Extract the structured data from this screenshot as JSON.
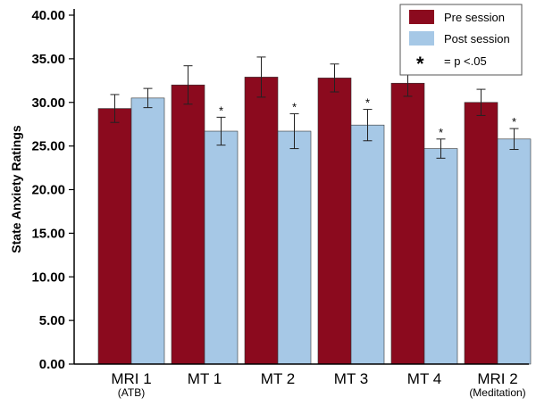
{
  "chart_data": {
    "type": "bar",
    "title": "",
    "xlabel": "",
    "ylabel": "State Anxiety Ratings",
    "ylim": [
      0,
      40
    ],
    "yticks": [
      "0.00",
      "5.00",
      "10.00",
      "15.00",
      "20.00",
      "25.00",
      "30.00",
      "35.00",
      "40.00"
    ],
    "categories": [
      "MRI 1",
      "MT 1",
      "MT 2",
      "MT 3",
      "MT 4",
      "MRI 2"
    ],
    "category_sublabels": [
      "(ATB)",
      "",
      "",
      "",
      "",
      "(Meditation)"
    ],
    "series": [
      {
        "name": "Pre session",
        "color": "#8b0a1e",
        "values": [
          29.3,
          32.0,
          32.9,
          32.8,
          32.2,
          30.0
        ],
        "errors": [
          1.6,
          2.2,
          2.3,
          1.6,
          1.5,
          1.5
        ]
      },
      {
        "name": "Post session",
        "color": "#a6c8e6",
        "values": [
          30.5,
          26.7,
          26.7,
          27.4,
          24.7,
          25.8
        ],
        "errors": [
          1.1,
          1.6,
          2.0,
          1.8,
          1.1,
          1.2
        ]
      }
    ],
    "significance_marker": "*",
    "significant_post": [
      false,
      true,
      true,
      true,
      true,
      true
    ],
    "legend": {
      "position": "top-right",
      "entries": [
        "Pre session",
        "Post session"
      ],
      "note_symbol": "*",
      "note_text": "= p <.05"
    }
  }
}
